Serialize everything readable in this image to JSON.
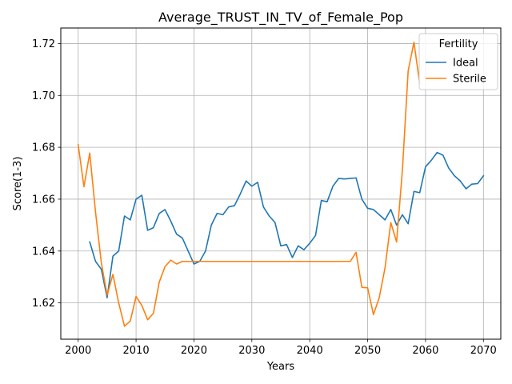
{
  "chart_data": {
    "type": "line",
    "title": "Average_TRUST_IN_TV_of_Female_Pop",
    "xlabel": "Years",
    "ylabel": "Score(1-3)",
    "xlim": [
      1997,
      2073
    ],
    "ylim": [
      1.606,
      1.726
    ],
    "xticks": [
      2000,
      2010,
      2020,
      2030,
      2040,
      2050,
      2060,
      2070
    ],
    "yticks": [
      1.62,
      1.64,
      1.66,
      1.68,
      1.7,
      1.72
    ],
    "ytick_labels": [
      "1.62",
      "1.64",
      "1.66",
      "1.68",
      "1.70",
      "1.72"
    ],
    "grid": true,
    "legend": {
      "title": "Fertility",
      "placement": "top-right"
    },
    "series": [
      {
        "name": "Ideal",
        "color": "#1f77b4",
        "x": [
          2002,
          2003,
          2004,
          2005,
          2006,
          2007,
          2008,
          2009,
          2010,
          2011,
          2012,
          2013,
          2014,
          2015,
          2016,
          2017,
          2018,
          2019,
          2020,
          2021,
          2022,
          2023,
          2024,
          2025,
          2026,
          2027,
          2028,
          2029,
          2030,
          2031,
          2032,
          2033,
          2034,
          2035,
          2036,
          2037,
          2038,
          2039,
          2040,
          2041,
          2042,
          2043,
          2044,
          2045,
          2046,
          2047,
          2048,
          2049,
          2050,
          2051,
          2052,
          2053,
          2054,
          2055,
          2056,
          2057,
          2058,
          2059,
          2060,
          2061,
          2062,
          2063,
          2064,
          2065,
          2066,
          2067,
          2068,
          2069,
          2070
        ],
        "y": [
          1.6435,
          1.636,
          1.633,
          1.622,
          1.638,
          1.64,
          1.6535,
          1.652,
          1.66,
          1.6615,
          1.648,
          1.649,
          1.6545,
          1.656,
          1.6515,
          1.6465,
          1.645,
          1.64,
          1.635,
          1.636,
          1.64,
          1.65,
          1.6545,
          1.654,
          1.657,
          1.6575,
          1.662,
          1.667,
          1.665,
          1.6665,
          1.657,
          1.6535,
          1.651,
          1.642,
          1.6425,
          1.6375,
          1.642,
          1.6405,
          1.643,
          1.646,
          1.6595,
          1.659,
          1.665,
          1.668,
          1.6678,
          1.668,
          1.6682,
          1.66,
          1.6565,
          1.656,
          1.654,
          1.652,
          1.656,
          1.65,
          1.654,
          1.6505,
          1.663,
          1.6625,
          1.6725,
          1.675,
          1.678,
          1.677,
          1.672,
          1.669,
          1.667,
          1.664,
          1.6658,
          1.666,
          1.669
        ]
      },
      {
        "name": "Sterile",
        "color": "#ff7f0e",
        "x": [
          2000,
          2001,
          2002,
          2003,
          2004,
          2005,
          2006,
          2007,
          2008,
          2009,
          2010,
          2011,
          2012,
          2013,
          2014,
          2015,
          2016,
          2017,
          2018,
          2019,
          2020,
          2021,
          2022,
          2023,
          2024,
          2025,
          2026,
          2027,
          2028,
          2029,
          2030,
          2031,
          2032,
          2033,
          2034,
          2035,
          2036,
          2037,
          2038,
          2039,
          2040,
          2041,
          2042,
          2043,
          2044,
          2045,
          2046,
          2047,
          2048,
          2049,
          2050,
          2051,
          2052,
          2053,
          2054,
          2055,
          2056,
          2057,
          2058,
          2059
        ],
        "y": [
          1.681,
          1.6648,
          1.6778,
          1.655,
          1.6355,
          1.623,
          1.631,
          1.62,
          1.611,
          1.613,
          1.6225,
          1.619,
          1.6135,
          1.616,
          1.628,
          1.634,
          1.6365,
          1.635,
          1.636,
          1.636,
          1.636,
          1.636,
          1.636,
          1.636,
          1.636,
          1.636,
          1.636,
          1.636,
          1.636,
          1.636,
          1.636,
          1.636,
          1.636,
          1.636,
          1.636,
          1.636,
          1.636,
          1.636,
          1.636,
          1.636,
          1.636,
          1.636,
          1.636,
          1.636,
          1.636,
          1.636,
          1.636,
          1.636,
          1.6395,
          1.626,
          1.6258,
          1.6155,
          1.622,
          1.6335,
          1.651,
          1.6435,
          1.671,
          1.7095,
          1.7205,
          1.7045
        ]
      }
    ]
  }
}
